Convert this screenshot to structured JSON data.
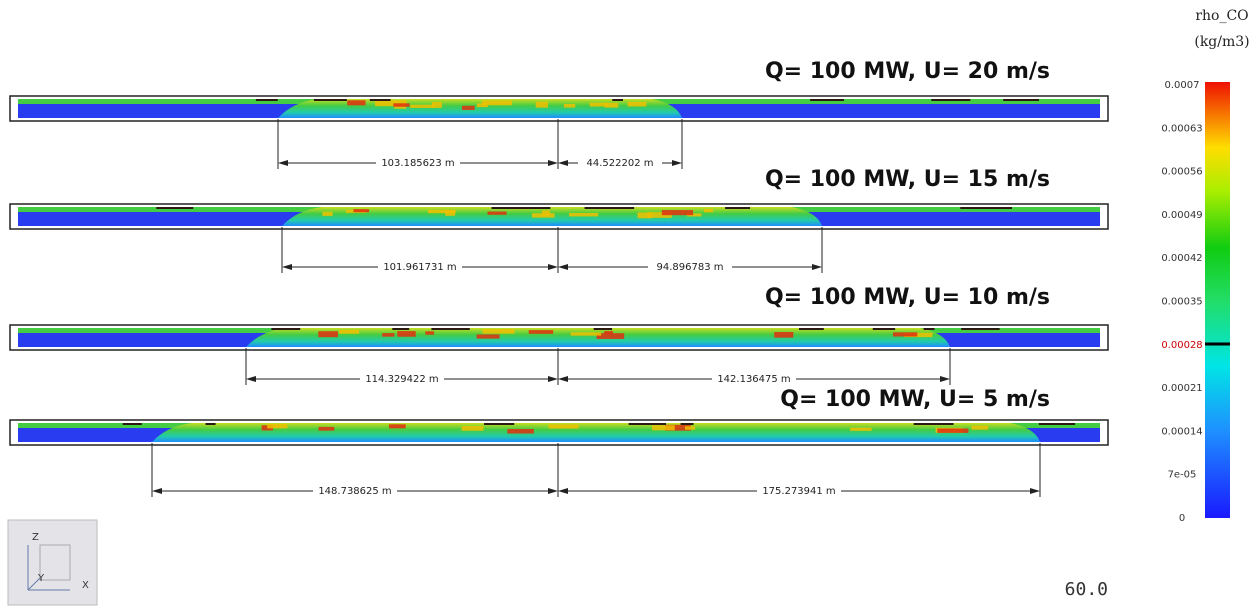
{
  "colorbar": {
    "title": "rho_CO",
    "unit": "(kg/m3)",
    "ticks": [
      "0.0007",
      "0.00063",
      "0.00056",
      "0.00049",
      "0.00042",
      "0.00035",
      "0.00028",
      "0.00021",
      "0.00014",
      "7e-05",
      "0"
    ]
  },
  "panels": [
    {
      "title": "Q= 100 MW, U= 20 m/s",
      "left": "103.185623 m",
      "right": "44.522202 m"
    },
    {
      "title": "Q= 100 MW, U= 15 m/s",
      "left": "101.961731 m",
      "right": "94.896783 m"
    },
    {
      "title": "Q= 100 MW, U= 10 m/s",
      "left": "114.329422 m",
      "right": "142.136475 m"
    },
    {
      "title": "Q= 100 MW, U= 5 m/s",
      "left": "148.738625 m",
      "right": "175.273941 m"
    }
  ],
  "triad": {
    "z": "Z",
    "y": "Y",
    "x": "X"
  },
  "fps": "60.0"
}
